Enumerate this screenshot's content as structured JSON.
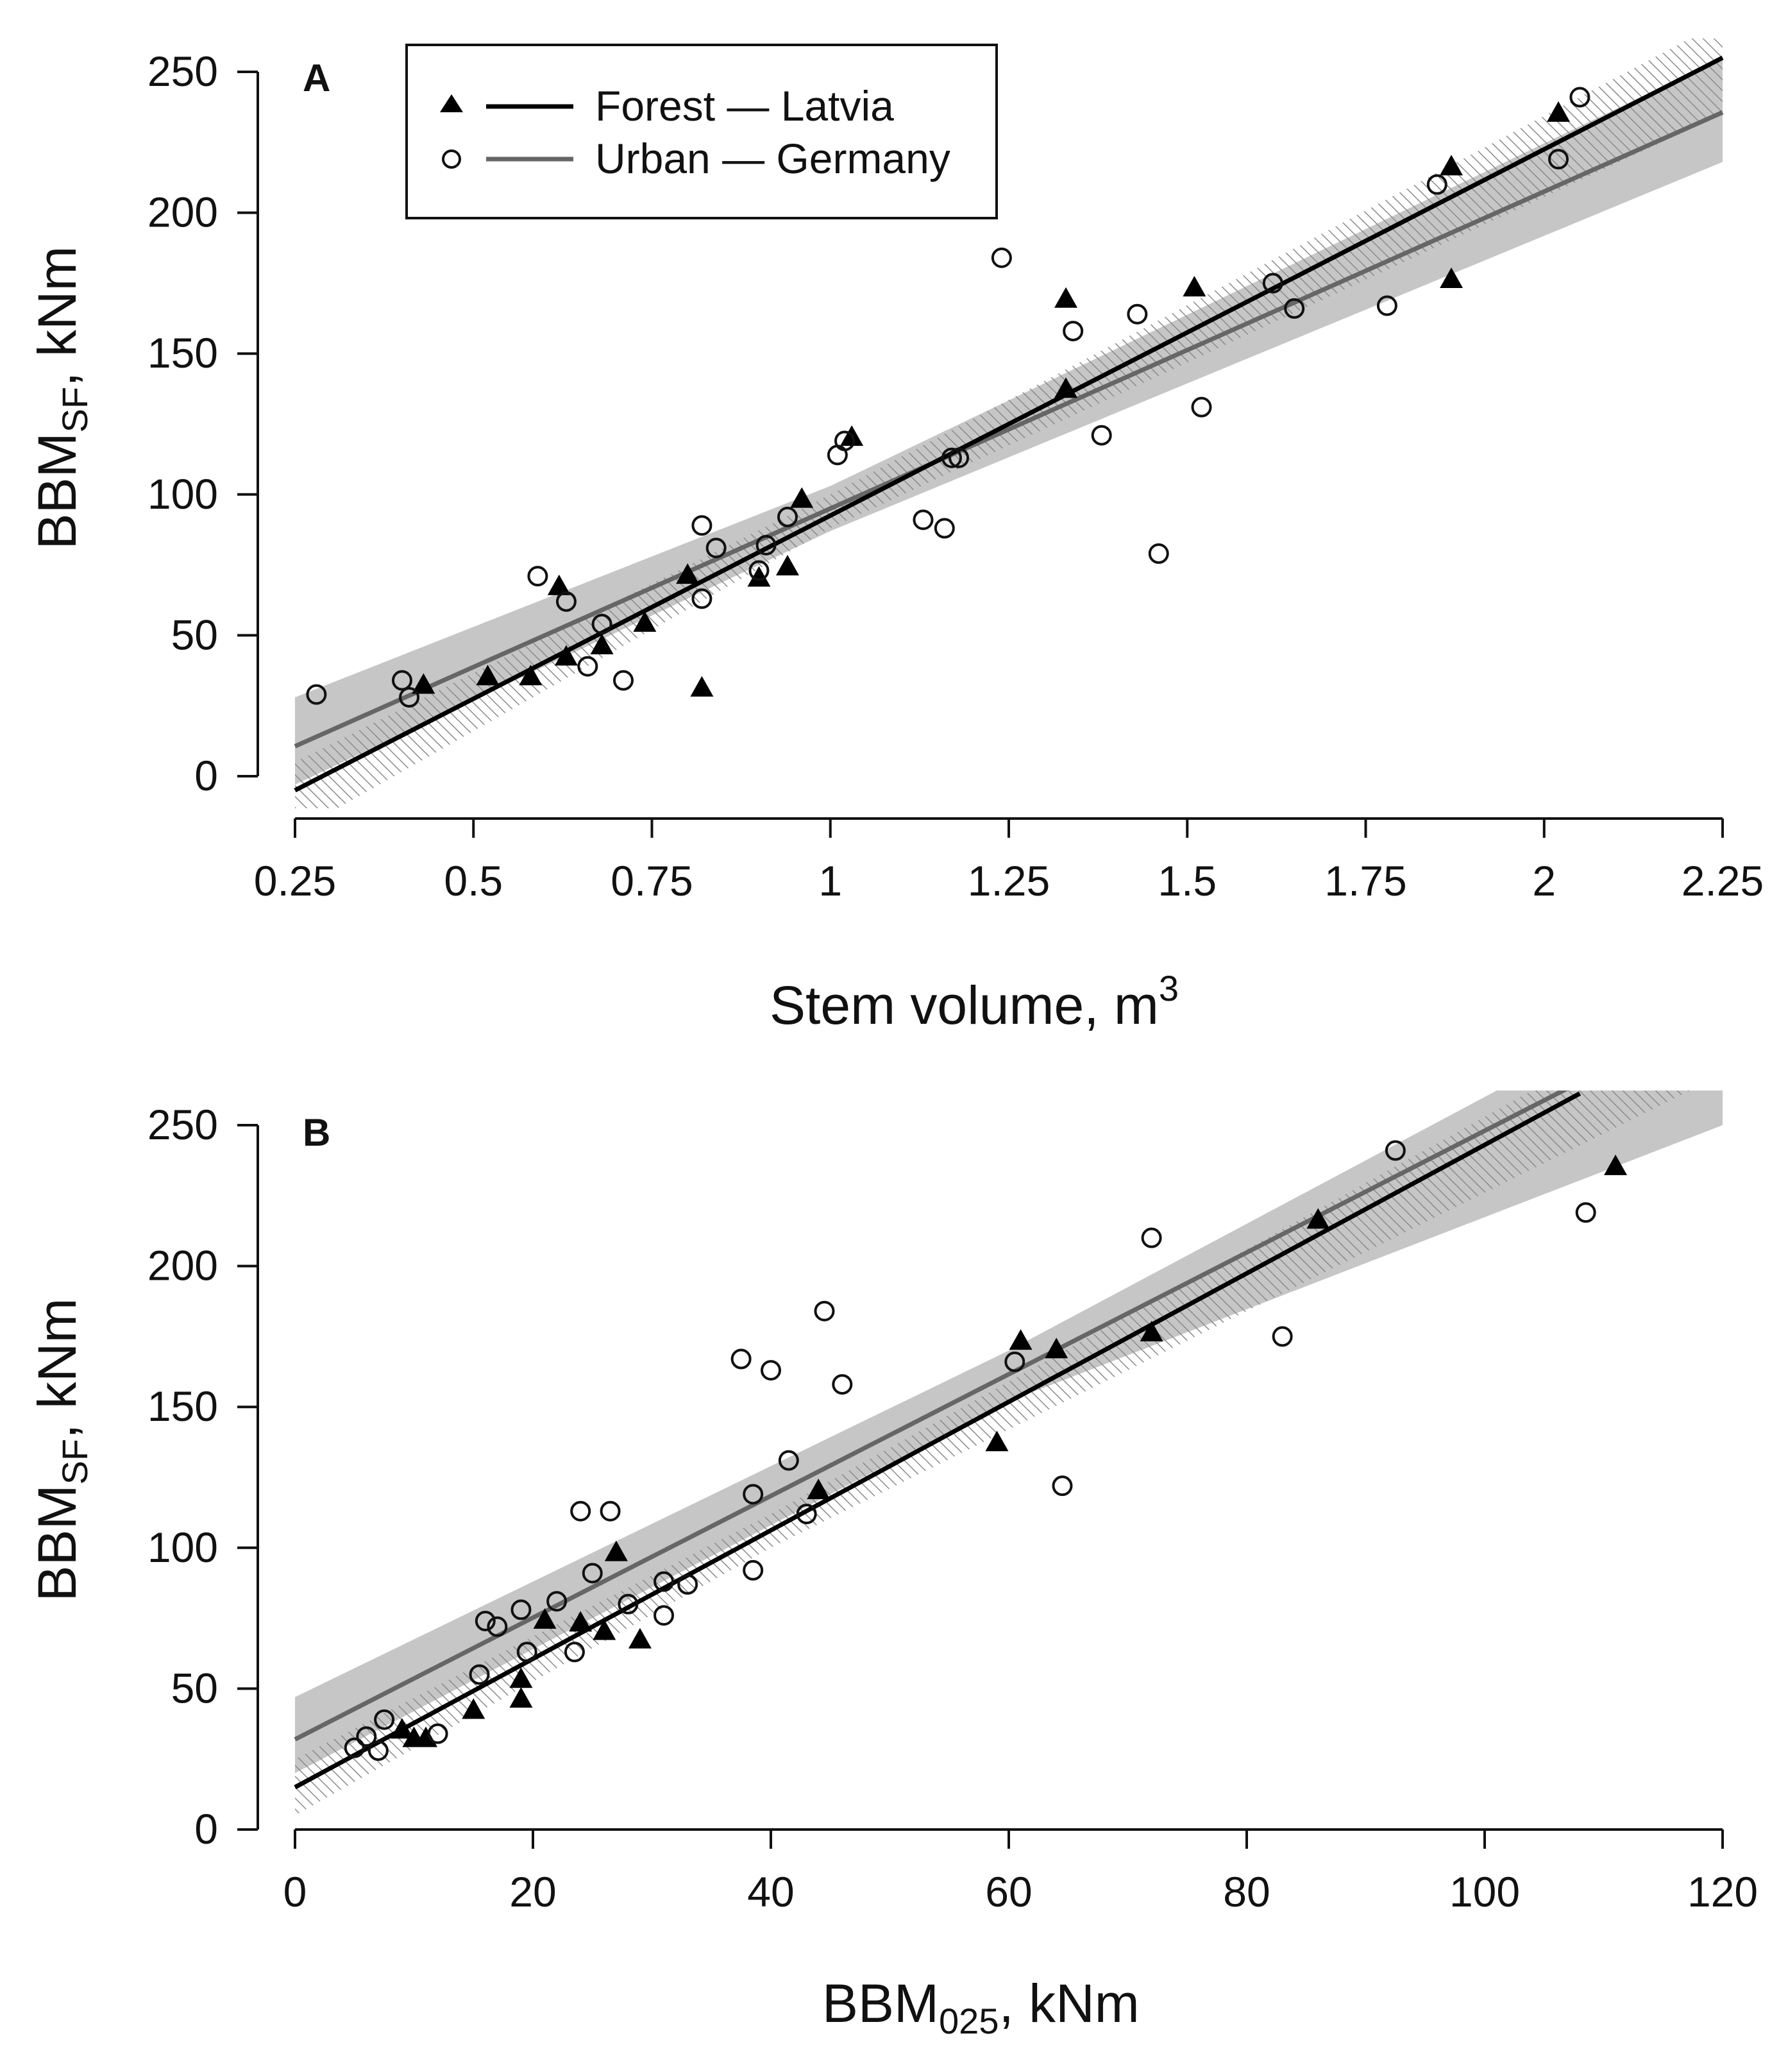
{
  "chart_data": [
    {
      "type": "scatter",
      "panel_label": "A",
      "xlabel": "Stem volume, m",
      "xlabel_sup": "3",
      "ylabel_main": "BBM",
      "ylabel_sub": "SF",
      "ylabel_tail": ", kNm",
      "xlim": [
        0.25,
        2.25
      ],
      "ylim": [
        0,
        250
      ],
      "xticks": [
        0.25,
        0.5,
        0.75,
        1,
        1.25,
        1.5,
        1.75,
        2,
        2.25
      ],
      "xtick_labels": [
        "0.25",
        "0.5",
        "0.75",
        "1",
        "1.25",
        "1.5",
        "1.75",
        "2",
        "2.25"
      ],
      "yticks": [
        0,
        50,
        100,
        150,
        200,
        250
      ],
      "ytick_labels": [
        "0",
        "50",
        "100",
        "150",
        "200",
        "250"
      ],
      "legend": {
        "position": "top-left",
        "entries": [
          {
            "label": "Forest — Latvia",
            "marker": "filled-triangle",
            "line_color": "#000000"
          },
          {
            "label": "Urban — Germany",
            "marker": "open-circle",
            "line_color": "#666666"
          }
        ]
      },
      "series": [
        {
          "name": "Forest — Latvia",
          "marker": "filled-triangle",
          "points": [
            [
              0.43,
              32
            ],
            [
              0.52,
              35
            ],
            [
              0.58,
              35
            ],
            [
              0.62,
              67
            ],
            [
              0.63,
              42
            ],
            [
              0.68,
              46
            ],
            [
              0.74,
              54
            ],
            [
              0.8,
              71
            ],
            [
              0.82,
              31
            ],
            [
              0.9,
              70
            ],
            [
              0.94,
              74
            ],
            [
              0.96,
              98
            ],
            [
              1.03,
              120
            ],
            [
              1.33,
              137
            ],
            [
              1.33,
              169
            ],
            [
              1.51,
              173
            ],
            [
              1.87,
              216
            ],
            [
              1.87,
              176
            ],
            [
              2.02,
              235
            ]
          ],
          "fit": {
            "slope": 130,
            "intercept": -37.5,
            "x_range": [
              0.25,
              2.25
            ],
            "color": "#000000"
          },
          "band": {
            "x": [
              0.25,
              1.0,
              2.25
            ],
            "lower": [
              -20,
              88,
              235
            ],
            "upper": [
              5,
              100,
              268
            ]
          }
        },
        {
          "name": "Urban — Germany",
          "marker": "open-circle",
          "points": [
            [
              0.28,
              29
            ],
            [
              0.4,
              34
            ],
            [
              0.41,
              28
            ],
            [
              0.59,
              71
            ],
            [
              0.63,
              62
            ],
            [
              0.66,
              39
            ],
            [
              0.68,
              54
            ],
            [
              0.71,
              34
            ],
            [
              0.82,
              89
            ],
            [
              0.82,
              63
            ],
            [
              0.84,
              81
            ],
            [
              0.9,
              73
            ],
            [
              0.91,
              82
            ],
            [
              0.94,
              92
            ],
            [
              1.01,
              114
            ],
            [
              1.02,
              119
            ],
            [
              1.13,
              91
            ],
            [
              1.16,
              88
            ],
            [
              1.17,
              113
            ],
            [
              1.18,
              113
            ],
            [
              1.24,
              184
            ],
            [
              1.34,
              158
            ],
            [
              1.38,
              121
            ],
            [
              1.43,
              164
            ],
            [
              1.46,
              79
            ],
            [
              1.52,
              131
            ],
            [
              1.62,
              175
            ],
            [
              1.65,
              166
            ],
            [
              1.78,
              167
            ],
            [
              1.85,
              210
            ],
            [
              2.02,
              219
            ],
            [
              2.05,
              241
            ]
          ],
          "fit": {
            "slope": 112.5,
            "intercept": -17.5,
            "x_range": [
              0.25,
              2.25
            ],
            "color": "#666666"
          },
          "band": {
            "x": [
              0.25,
              1.0,
              2.25
            ],
            "lower": [
              -3,
              87,
              218
            ],
            "upper": [
              28,
              103,
              255
            ]
          }
        }
      ]
    },
    {
      "type": "scatter",
      "panel_label": "B",
      "xlabel_main": "BBM",
      "xlabel_sub": "025",
      "xlabel_tail": ", kNm",
      "ylabel_main": "BBM",
      "ylabel_sub": "SF",
      "ylabel_tail": ", kNm",
      "xlim": [
        0,
        120
      ],
      "ylim": [
        0,
        250
      ],
      "xticks": [
        0,
        20,
        40,
        60,
        80,
        100,
        120
      ],
      "xtick_labels": [
        "0",
        "20",
        "40",
        "60",
        "80",
        "100",
        "120"
      ],
      "yticks": [
        0,
        50,
        100,
        150,
        200,
        250
      ],
      "ytick_labels": [
        "0",
        "50",
        "100",
        "150",
        "200",
        "250"
      ],
      "series": [
        {
          "name": "Forest — Latvia",
          "marker": "filled-triangle",
          "points": [
            [
              9,
              35
            ],
            [
              10,
              32
            ],
            [
              11,
              32
            ],
            [
              15,
              42
            ],
            [
              19,
              53
            ],
            [
              19,
              46
            ],
            [
              21,
              74
            ],
            [
              24,
              73
            ],
            [
              26,
              70
            ],
            [
              27,
              98
            ],
            [
              29,
              67
            ],
            [
              44,
              120
            ],
            [
              59,
              137
            ],
            [
              61,
              173
            ],
            [
              64,
              170
            ],
            [
              72,
              176
            ],
            [
              86,
              216
            ],
            [
              111,
              235
            ]
          ],
          "fit": {
            "slope": 2.28,
            "intercept": 15,
            "x_range": [
              0,
              108
            ],
            "color": "#000000"
          },
          "band": {
            "x": [
              0,
              40,
              120
            ],
            "lower": [
              5,
              100,
              268
            ],
            "upper": [
              25,
              112,
              300
            ]
          }
        },
        {
          "name": "Urban — Germany",
          "marker": "open-circle",
          "points": [
            [
              5,
              29
            ],
            [
              6,
              33
            ],
            [
              7,
              28
            ],
            [
              7.5,
              39
            ],
            [
              12,
              34
            ],
            [
              15.5,
              55
            ],
            [
              16,
              74
            ],
            [
              17,
              72
            ],
            [
              19,
              78
            ],
            [
              19.5,
              63
            ],
            [
              22,
              81
            ],
            [
              23.5,
              63
            ],
            [
              24,
              113
            ],
            [
              25,
              91
            ],
            [
              26.5,
              113
            ],
            [
              28,
              80
            ],
            [
              31,
              88
            ],
            [
              31,
              76
            ],
            [
              33,
              87
            ],
            [
              37.5,
              167
            ],
            [
              38.5,
              119
            ],
            [
              38.5,
              92
            ],
            [
              40,
              163
            ],
            [
              41.5,
              131
            ],
            [
              43,
              112
            ],
            [
              44.5,
              184
            ],
            [
              46,
              158
            ],
            [
              60.5,
              166
            ],
            [
              64.5,
              122
            ],
            [
              72,
              210
            ],
            [
              83,
              175
            ],
            [
              92.5,
              241
            ],
            [
              108.5,
              219
            ]
          ],
          "fit": {
            "slope": 2.16,
            "intercept": 32,
            "x_range": [
              0,
              120
            ],
            "color": "#666666"
          },
          "band": {
            "x": [
              0,
              60,
              120
            ],
            "lower": [
              20,
              152,
              250
            ],
            "upper": [
              47,
              170,
              305
            ]
          }
        }
      ]
    }
  ]
}
